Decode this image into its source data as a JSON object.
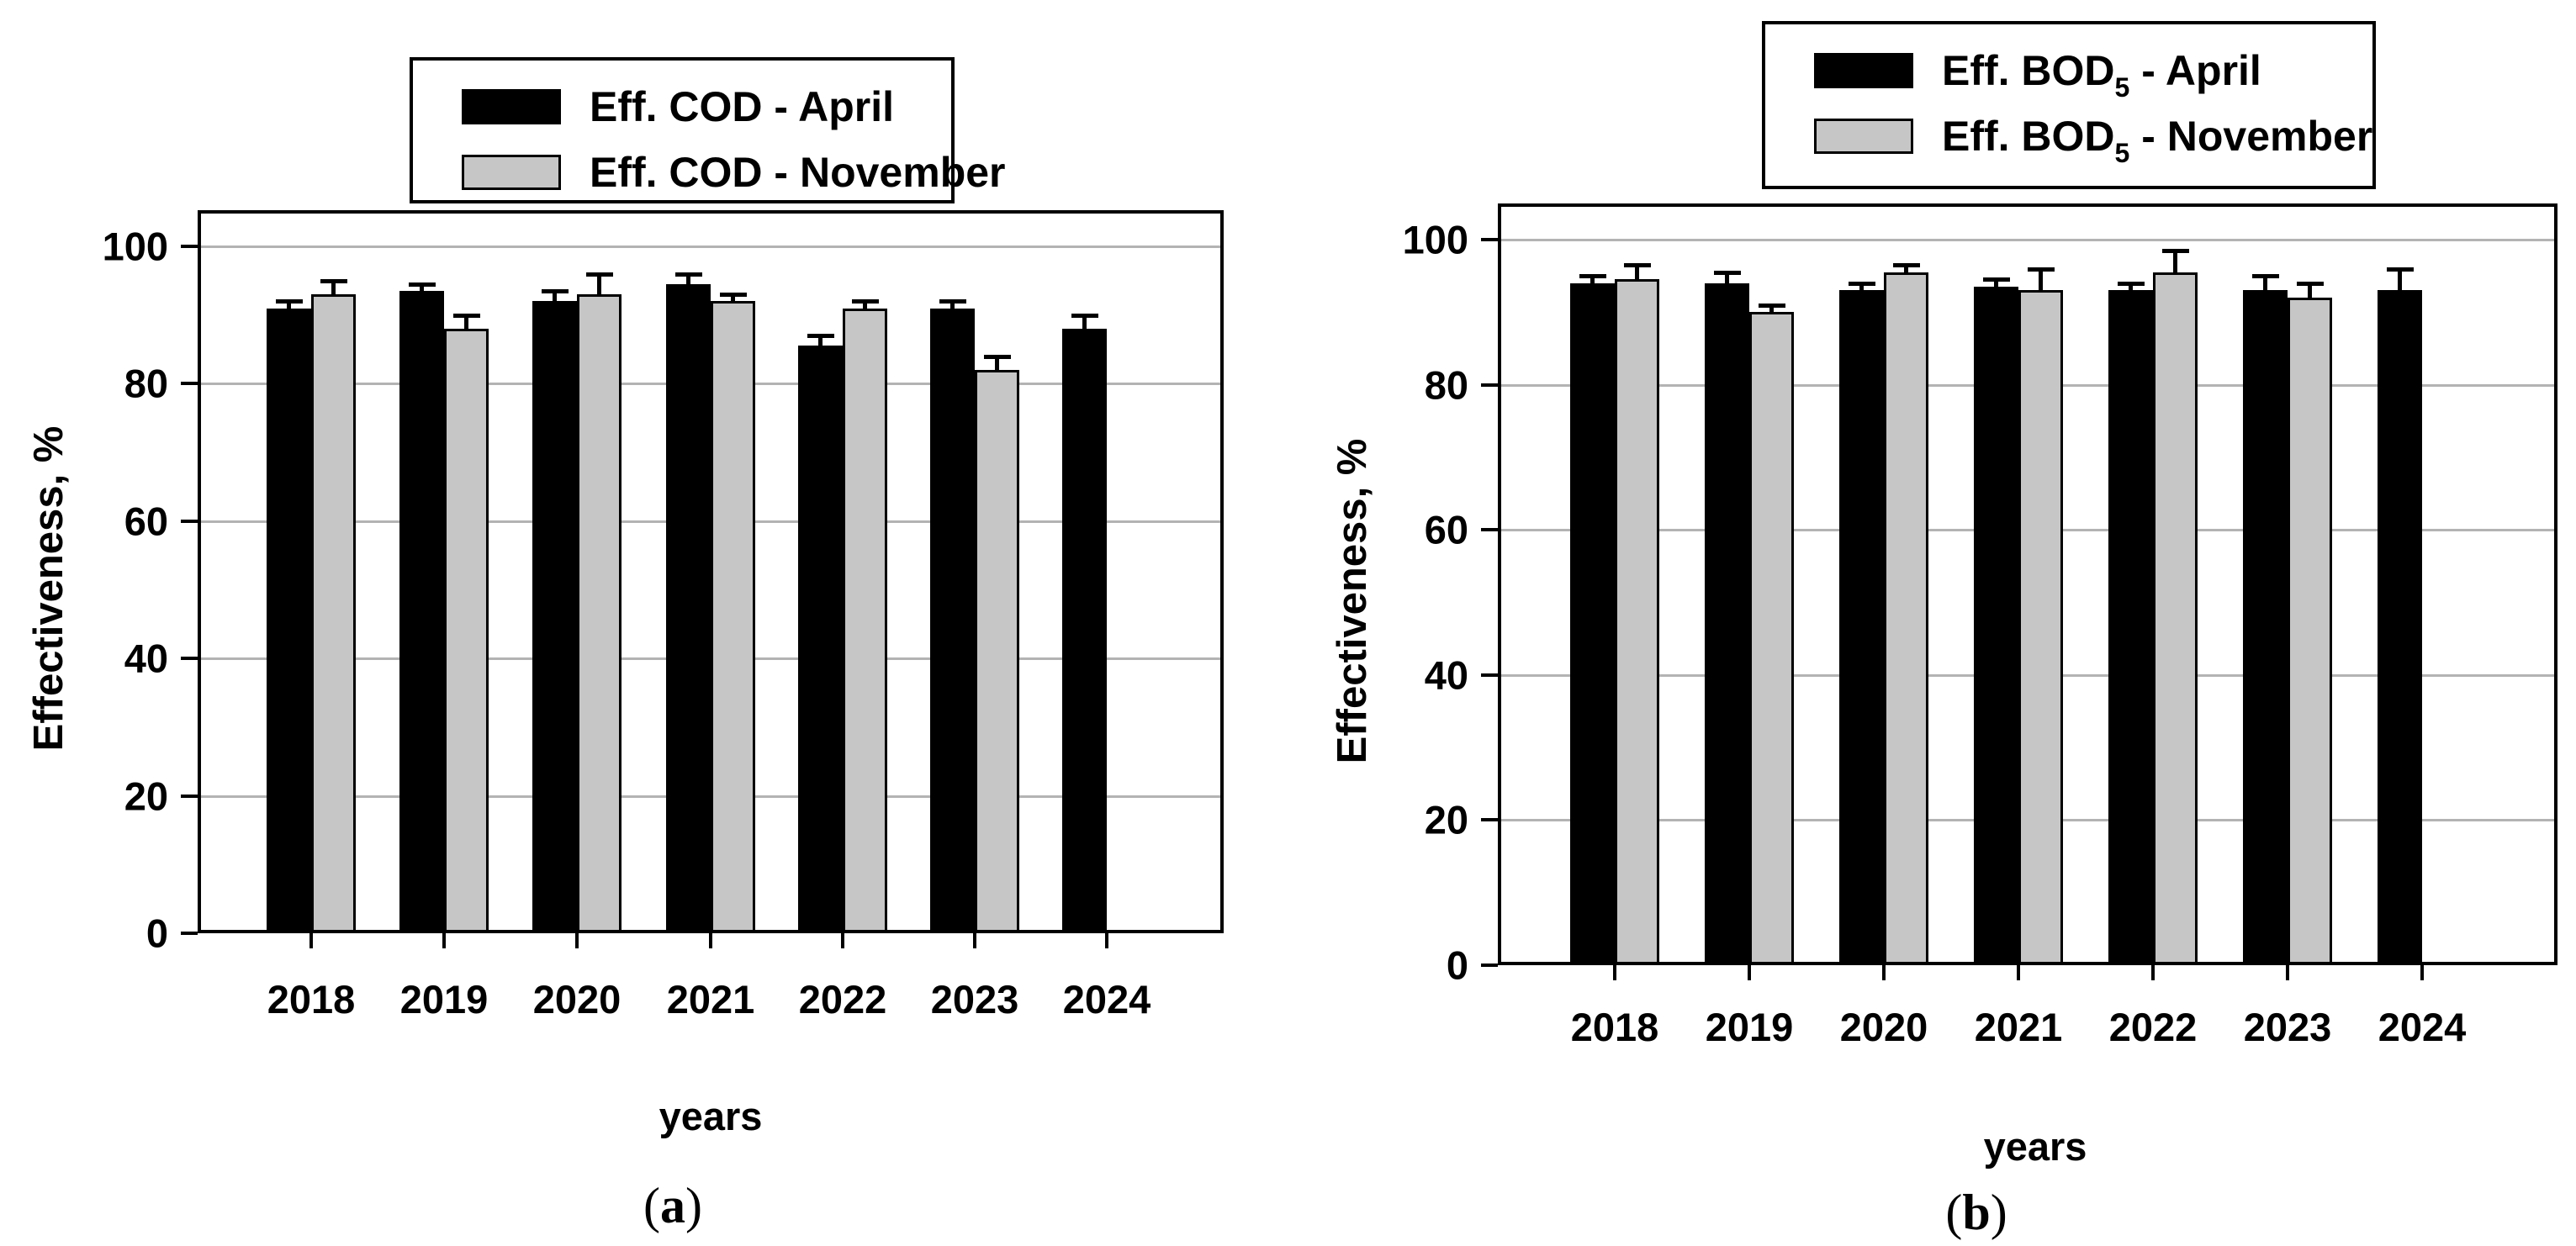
{
  "figure": {
    "captions": [
      {
        "pre": "(",
        "letter": "a",
        "post": ")"
      },
      {
        "pre": "(",
        "letter": "b",
        "post": ")"
      }
    ]
  },
  "chart_data": [
    {
      "type": "bar",
      "panel": "a",
      "title": "",
      "xlabel": "years",
      "ylabel": "Effectiveness, %",
      "ylim": [
        0,
        105
      ],
      "yticks": [
        0,
        20,
        40,
        60,
        80,
        100
      ],
      "grid": "horizontal gridlines at 20,40,60,80,100",
      "legend_position": "top center above plot",
      "categories": [
        "2018",
        "2019",
        "2020",
        "2021",
        "2022",
        "2023",
        "2024"
      ],
      "series": [
        {
          "name": "Eff. COD - April",
          "name_parts": {
            "pre": "Eff. COD - April",
            "sub": "",
            "post": ""
          },
          "month": "April",
          "color": "#000000",
          "values": [
            91,
            93.5,
            92,
            94.5,
            85.5,
            91,
            88
          ],
          "errors": [
            1,
            1,
            1.5,
            1.5,
            1.5,
            1,
            2
          ]
        },
        {
          "name": "Eff. COD - November",
          "name_parts": {
            "pre": "Eff. COD - November",
            "sub": "",
            "post": ""
          },
          "month": "November",
          "color": "#c6c6c6",
          "values": [
            93,
            88,
            93,
            92,
            91,
            82,
            null
          ],
          "errors": [
            2,
            2,
            3,
            1,
            1,
            2,
            null
          ]
        }
      ]
    },
    {
      "type": "bar",
      "panel": "b",
      "title": "",
      "xlabel": "years",
      "ylabel": "Effectiveness, %",
      "ylim": [
        0,
        105
      ],
      "yticks": [
        0,
        20,
        40,
        60,
        80,
        100
      ],
      "grid": "horizontal gridlines at 20,40,60,80,100",
      "legend_position": "top center above plot",
      "categories": [
        "2018",
        "2019",
        "2020",
        "2021",
        "2022",
        "2023",
        "2024"
      ],
      "series": [
        {
          "name": "Eff. BOD5 - April",
          "name_parts": {
            "pre": "Eff. BOD",
            "sub": "5",
            "post": " - April"
          },
          "month": "April",
          "color": "#000000",
          "values": [
            94,
            94,
            93,
            93.5,
            93,
            93,
            93
          ],
          "errors": [
            1,
            1.5,
            1,
            1,
            1,
            2,
            3
          ]
        },
        {
          "name": "Eff. BOD5 - November",
          "name_parts": {
            "pre": "Eff. BOD",
            "sub": "5",
            "post": " - November"
          },
          "month": "November",
          "color": "#c6c6c6",
          "values": [
            94.5,
            90,
            95.5,
            93,
            95.5,
            92,
            null
          ],
          "errors": [
            2,
            1,
            1,
            3,
            3,
            2,
            null
          ]
        }
      ]
    }
  ]
}
